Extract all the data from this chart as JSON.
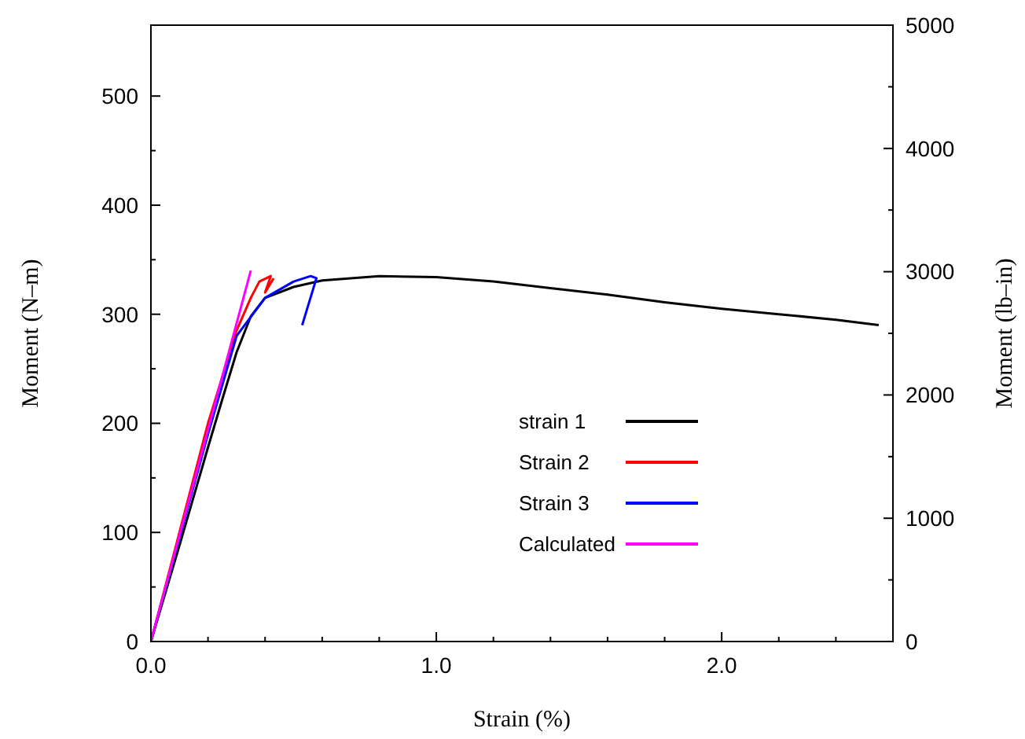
{
  "chart_data": {
    "type": "line",
    "xlabel": "Strain (%)",
    "ylabel": "Moment (N–m)",
    "y2label": "Moment (lb–in)",
    "xlim": [
      0,
      2.6
    ],
    "xticks": [
      {
        "value": 0,
        "label": "0.0"
      },
      {
        "value": 0.2,
        "label": null
      },
      {
        "value": 0.4,
        "label": null
      },
      {
        "value": 0.6,
        "label": null
      },
      {
        "value": 0.8,
        "label": null
      },
      {
        "value": 1,
        "label": "1.0"
      },
      {
        "value": 1.2,
        "label": null
      },
      {
        "value": 1.4,
        "label": null
      },
      {
        "value": 1.6,
        "label": null
      },
      {
        "value": 1.8,
        "label": null
      },
      {
        "value": 2,
        "label": "2.0"
      },
      {
        "value": 2.2,
        "label": null
      },
      {
        "value": 2.4,
        "label": null
      }
    ],
    "ylim": [
      0,
      565
    ],
    "yticks": [
      0,
      {
        "value": 50,
        "label": null
      },
      100,
      {
        "value": 150,
        "label": null
      },
      200,
      {
        "value": 250,
        "label": null
      },
      300,
      {
        "value": 350,
        "label": null
      },
      400,
      {
        "value": 450,
        "label": null
      },
      500
    ],
    "y2lim": [
      0,
      5000
    ],
    "y2ticks": [
      0,
      {
        "value": 500,
        "label": null
      },
      1000,
      {
        "value": 1500,
        "label": null
      },
      2000,
      {
        "value": 2500,
        "label": null
      },
      3000,
      {
        "value": 3500,
        "label": null
      },
      4000,
      {
        "value": 4500,
        "label": null
      },
      5000
    ],
    "legend": "right",
    "grid": false,
    "series": [
      {
        "name": "strain 1",
        "color": "#000000",
        "x": [
          0,
          0.1,
          0.2,
          0.25,
          0.3,
          0.35,
          0.4,
          0.5,
          0.6,
          0.8,
          1.0,
          1.2,
          1.4,
          1.6,
          1.8,
          2.0,
          2.2,
          2.4,
          2.55
        ],
        "values": [
          0,
          88,
          178,
          222,
          265,
          298,
          315,
          325,
          331,
          335,
          334,
          330,
          324,
          318,
          311,
          305,
          300,
          295,
          290
        ]
      },
      {
        "name": "Strain 2",
        "color": "#ff0000",
        "x": [
          0,
          0.1,
          0.2,
          0.3,
          0.35,
          0.38,
          0.42,
          0.4,
          0.43
        ],
        "values": [
          0,
          100,
          200,
          285,
          315,
          330,
          335,
          320,
          333
        ]
      },
      {
        "name": "Strain 3",
        "color": "#0000ff",
        "x": [
          0,
          0.1,
          0.2,
          0.3,
          0.4,
          0.5,
          0.56,
          0.58,
          0.53
        ],
        "values": [
          0,
          95,
          190,
          280,
          315,
          330,
          335,
          333,
          290
        ]
      },
      {
        "name": "Calculated",
        "color": "#ff00ff",
        "x": [
          0,
          0.35
        ],
        "values": [
          0,
          340
        ]
      }
    ]
  }
}
